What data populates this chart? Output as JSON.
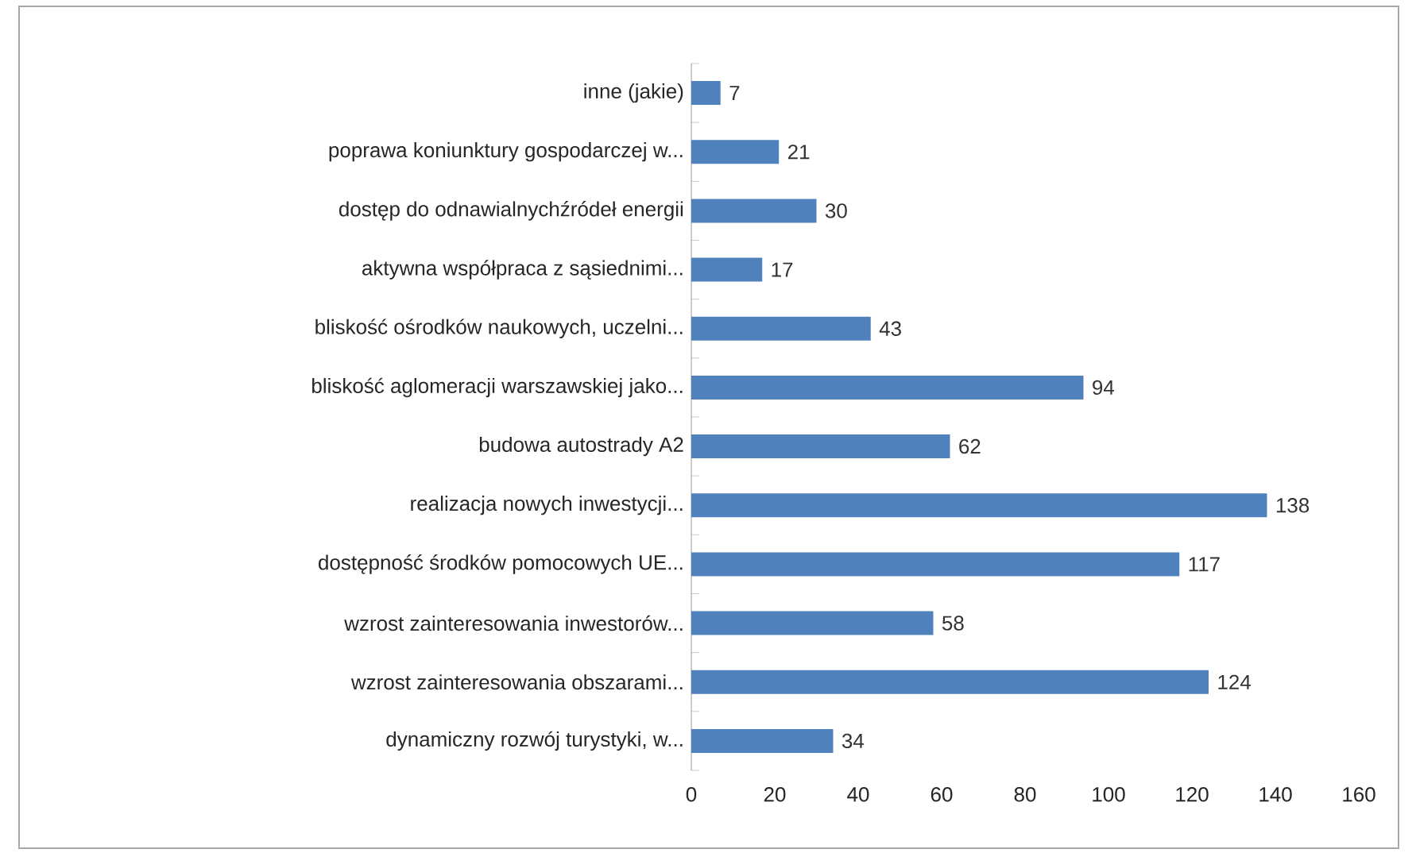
{
  "chart_data": {
    "type": "bar",
    "orientation": "horizontal",
    "categories": [
      "inne (jakie)",
      "poprawa koniunktury gospodarczej w...",
      "dostęp do odnawialnychźródeł energii",
      "aktywna współpraca z sąsiednimi...",
      "bliskość ośrodków naukowych, uczelni...",
      "bliskość aglomeracji warszawskiej jako...",
      "budowa autostrady A2",
      "realizacja nowych inwestycji...",
      "dostępność środków pomocowych UE...",
      "wzrost zainteresowania inwestorów...",
      "wzrost zainteresowania obszarami...",
      "dynamiczny rozwój turystyki, w..."
    ],
    "values": [
      7,
      21,
      30,
      17,
      43,
      94,
      62,
      138,
      117,
      58,
      124,
      34
    ],
    "color": "#4f81bd",
    "xlim": [
      0,
      160
    ],
    "xticks": [
      0,
      20,
      40,
      60,
      80,
      100,
      120,
      140,
      160
    ],
    "data_labels": true,
    "grid": false
  }
}
